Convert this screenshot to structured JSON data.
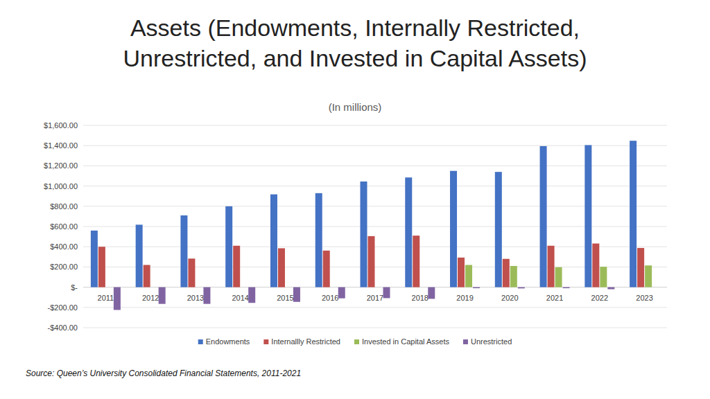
{
  "chart_data": {
    "type": "bar",
    "title": "Assets (Endowments, Internally Restricted,\nUnrestricted, and Invested in Capital Assets)",
    "subtitle": "(In millions)",
    "source": "Source: Queen’s University Consolidated Financial Statements, 2011-2021",
    "categories": [
      "2011",
      "2012",
      "2013",
      "2014",
      "2015",
      "2016",
      "2017",
      "2018",
      "2019",
      "2020",
      "2021",
      "2022",
      "2023"
    ],
    "series": [
      {
        "name": "Endowments",
        "color": "#4472c4",
        "values": [
          560,
          618,
          710,
          800,
          918,
          930,
          1045,
          1085,
          1150,
          1140,
          1395,
          1405,
          1448
        ]
      },
      {
        "name": "Internallly Restricted",
        "color": "#c0504d",
        "values": [
          400,
          220,
          283,
          410,
          385,
          362,
          505,
          510,
          293,
          280,
          410,
          432,
          388
        ]
      },
      {
        "name": "Invested in Capital Assets",
        "color": "#9bbb59",
        "values": [
          null,
          null,
          null,
          null,
          null,
          null,
          null,
          null,
          220,
          210,
          198,
          202,
          215
        ]
      },
      {
        "name": "Unrestricted",
        "color": "#8064a2",
        "values": [
          -225,
          -165,
          -165,
          -155,
          -145,
          -110,
          -108,
          -115,
          -10,
          -12,
          -10,
          -20,
          null
        ]
      }
    ],
    "ylim": [
      -400,
      1600
    ],
    "yticks": [
      {
        "value": -400,
        "label": "-$400.00"
      },
      {
        "value": -200,
        "label": "-$200.00"
      },
      {
        "value": 0,
        "label": "$-"
      },
      {
        "value": 200,
        "label": "$200.00"
      },
      {
        "value": 400,
        "label": "$400.00"
      },
      {
        "value": 600,
        "label": "$600.00"
      },
      {
        "value": 800,
        "label": "$800.00"
      },
      {
        "value": 1000,
        "label": "$1,000.00"
      },
      {
        "value": 1200,
        "label": "$1,200.00"
      },
      {
        "value": 1400,
        "label": "$1,400.00"
      },
      {
        "value": 1600,
        "label": "$1,600.00"
      }
    ],
    "grid": true,
    "legend": "bottom"
  }
}
